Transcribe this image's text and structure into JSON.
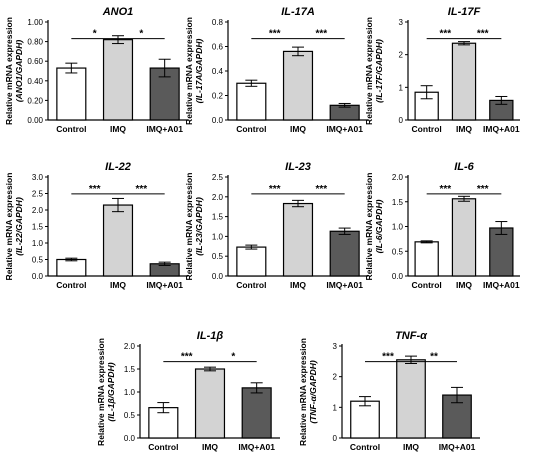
{
  "colors": {
    "axis": "#000000",
    "bar_fills": [
      "#ffffff",
      "#d3d3d3",
      "#5a5a5a"
    ],
    "bar_stroke": "#000000"
  },
  "chart_data": [
    {
      "type": "bar",
      "title": "ANO1",
      "ylabel_line1": "Relative mRNA expression",
      "ylabel_line2": "(ANO1/GAPDH)",
      "categories": [
        "Control",
        "IMQ",
        "IMQ+A01"
      ],
      "values": [
        0.53,
        0.82,
        0.53
      ],
      "errors": [
        0.05,
        0.04,
        0.09
      ],
      "ylim": [
        0,
        1.0
      ],
      "yticks": [
        "0.00",
        "0.20",
        "0.40",
        "0.60",
        "0.80",
        "1.00"
      ],
      "ytick_values": [
        0,
        0.2,
        0.4,
        0.6,
        0.8,
        1.0
      ],
      "significance": [
        {
          "from": 0,
          "to": 1,
          "label": "*"
        },
        {
          "from": 1,
          "to": 2,
          "label": "*"
        }
      ]
    },
    {
      "type": "bar",
      "title": "IL-17A",
      "ylabel_line1": "Relative mRNA expression",
      "ylabel_line2": "(IL-17A/GAPDH)",
      "categories": [
        "Control",
        "IMQ",
        "IMQ+A01"
      ],
      "values": [
        0.3,
        0.56,
        0.12
      ],
      "errors": [
        0.025,
        0.035,
        0.015
      ],
      "ylim": [
        0,
        0.8
      ],
      "yticks": [
        "0.0",
        "0.2",
        "0.4",
        "0.6",
        "0.8"
      ],
      "ytick_values": [
        0,
        0.2,
        0.4,
        0.6,
        0.8
      ],
      "significance": [
        {
          "from": 0,
          "to": 1,
          "label": "***"
        },
        {
          "from": 1,
          "to": 2,
          "label": "***"
        }
      ]
    },
    {
      "type": "bar",
      "title": "IL-17F",
      "ylabel_line1": "Relative mRNA expression",
      "ylabel_line2": "(IL-17F/GAPDH)",
      "categories": [
        "Control",
        "IMQ",
        "IMQ+A01"
      ],
      "values": [
        0.85,
        2.35,
        0.6
      ],
      "errors": [
        0.2,
        0.05,
        0.12
      ],
      "ylim": [
        0,
        3
      ],
      "yticks": [
        "0",
        "1",
        "2",
        "3"
      ],
      "ytick_values": [
        0,
        1,
        2,
        3
      ],
      "significance": [
        {
          "from": 0,
          "to": 1,
          "label": "***"
        },
        {
          "from": 1,
          "to": 2,
          "label": "***"
        }
      ]
    },
    {
      "type": "bar",
      "title": "IL-22",
      "ylabel_line1": "Relative mRNA expression",
      "ylabel_line2": "(IL-22/GAPDH)",
      "categories": [
        "Control",
        "IMQ",
        "IMQ+A01"
      ],
      "values": [
        0.5,
        2.15,
        0.37
      ],
      "errors": [
        0.04,
        0.2,
        0.05
      ],
      "ylim": [
        0,
        3.0
      ],
      "yticks": [
        "0.0",
        "0.5",
        "1.0",
        "1.5",
        "2.0",
        "2.5",
        "3.0"
      ],
      "ytick_values": [
        0,
        0.5,
        1.0,
        1.5,
        2.0,
        2.5,
        3.0
      ],
      "significance": [
        {
          "from": 0,
          "to": 1,
          "label": "***"
        },
        {
          "from": 1,
          "to": 2,
          "label": "***"
        }
      ]
    },
    {
      "type": "bar",
      "title": "IL-23",
      "ylabel_line1": "Relative mRNA expression",
      "ylabel_line2": "(IL-23/GAPDH)",
      "categories": [
        "Control",
        "IMQ",
        "IMQ+A01"
      ],
      "values": [
        0.73,
        1.83,
        1.13
      ],
      "errors": [
        0.05,
        0.08,
        0.08
      ],
      "ylim": [
        0,
        2.5
      ],
      "yticks": [
        "0.0",
        "0.5",
        "1.0",
        "1.5",
        "2.0",
        "2.5"
      ],
      "ytick_values": [
        0,
        0.5,
        1.0,
        1.5,
        2.0,
        2.5
      ],
      "significance": [
        {
          "from": 0,
          "to": 1,
          "label": "***"
        },
        {
          "from": 1,
          "to": 2,
          "label": "***"
        }
      ]
    },
    {
      "type": "bar",
      "title": "IL-6",
      "ylabel_line1": "Relative mRNA expression",
      "ylabel_line2": "(IL-6/GAPDH)",
      "categories": [
        "Control",
        "IMQ",
        "IMQ+A01"
      ],
      "values": [
        0.69,
        1.56,
        0.97
      ],
      "errors": [
        0.02,
        0.05,
        0.13
      ],
      "ylim": [
        0,
        2.0
      ],
      "yticks": [
        "0.0",
        "0.5",
        "1.0",
        "1.5",
        "2.0"
      ],
      "ytick_values": [
        0,
        0.5,
        1.0,
        1.5,
        2.0
      ],
      "significance": [
        {
          "from": 0,
          "to": 1,
          "label": "***"
        },
        {
          "from": 1,
          "to": 2,
          "label": "***"
        }
      ]
    },
    {
      "type": "bar",
      "title": "IL-1β",
      "ylabel_line1": "Relative mRNA expression",
      "ylabel_line2": "(IL-1β/GAPDH)",
      "categories": [
        "Control",
        "IMQ",
        "IMQ+A01"
      ],
      "values": [
        0.66,
        1.5,
        1.09
      ],
      "errors": [
        0.11,
        0.04,
        0.11
      ],
      "ylim": [
        0,
        2.0
      ],
      "yticks": [
        "0.0",
        "0.5",
        "1.0",
        "1.5",
        "2.0"
      ],
      "ytick_values": [
        0,
        0.5,
        1.0,
        1.5,
        2.0
      ],
      "significance": [
        {
          "from": 0,
          "to": 1,
          "label": "***"
        },
        {
          "from": 1,
          "to": 2,
          "label": "*"
        }
      ]
    },
    {
      "type": "bar",
      "title": "TNF-α",
      "ylabel_line1": "Relative mRNA expression",
      "ylabel_line2": "(TNF-α/GAPDH)",
      "categories": [
        "Control",
        "IMQ",
        "IMQ+A01"
      ],
      "values": [
        1.2,
        2.55,
        1.4
      ],
      "errors": [
        0.15,
        0.12,
        0.25
      ],
      "ylim": [
        0,
        3
      ],
      "yticks": [
        "0",
        "1",
        "2",
        "3"
      ],
      "ytick_values": [
        0,
        1,
        2,
        3
      ],
      "significance": [
        {
          "from": 0,
          "to": 1,
          "label": "***"
        },
        {
          "from": 1,
          "to": 2,
          "label": "**"
        }
      ]
    }
  ]
}
